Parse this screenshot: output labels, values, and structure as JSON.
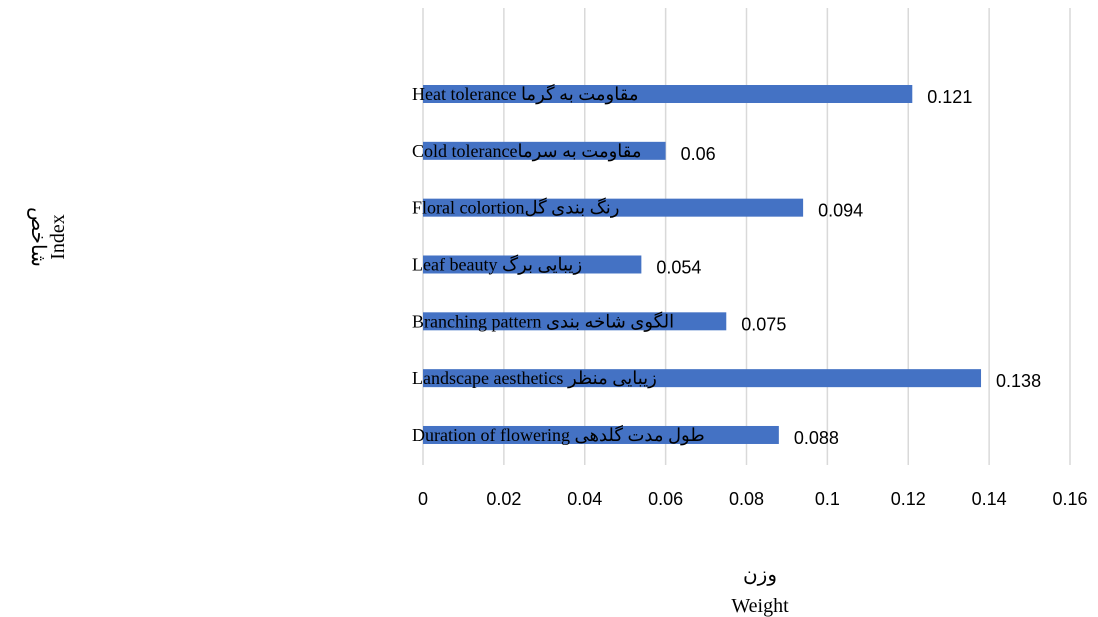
{
  "chart_data": {
    "type": "bar",
    "orientation": "horizontal",
    "categories": [
      "مقاومت به گرما Heat tolerance",
      "مقاومت به سرماCold tolerance",
      "رنگ بندی گلFloral colortion",
      "زیبایی برگ    Leaf beauty",
      "الگوی شاخه بندی  Branching pattern",
      "زیبایی منظر Landscape aesthetics",
      "طول مدت گلدهی   Duration of flowering"
    ],
    "values": [
      0.121,
      0.06,
      0.094,
      0.054,
      0.075,
      0.138,
      0.088
    ],
    "data_labels": [
      "0.121",
      "0.06",
      "0.094",
      "0.054",
      "0.075",
      "0.138",
      "0.088"
    ],
    "xlim": [
      0,
      0.16
    ],
    "x_ticks": [
      0,
      0.02,
      0.04,
      0.06,
      0.08,
      0.1,
      0.12,
      0.14,
      0.16
    ],
    "x_tick_labels": [
      "0",
      "0.02",
      "0.04",
      "0.06",
      "0.08",
      "0.1",
      "0.12",
      "0.14",
      "0.16"
    ],
    "xlabel_fa": "وزن",
    "xlabel": "Weight",
    "ylabel_fa": "شاخص",
    "ylabel": "Index",
    "grid": "vertical",
    "bar_color": "#4472c4",
    "grid_color": "#d9d9d9"
  }
}
